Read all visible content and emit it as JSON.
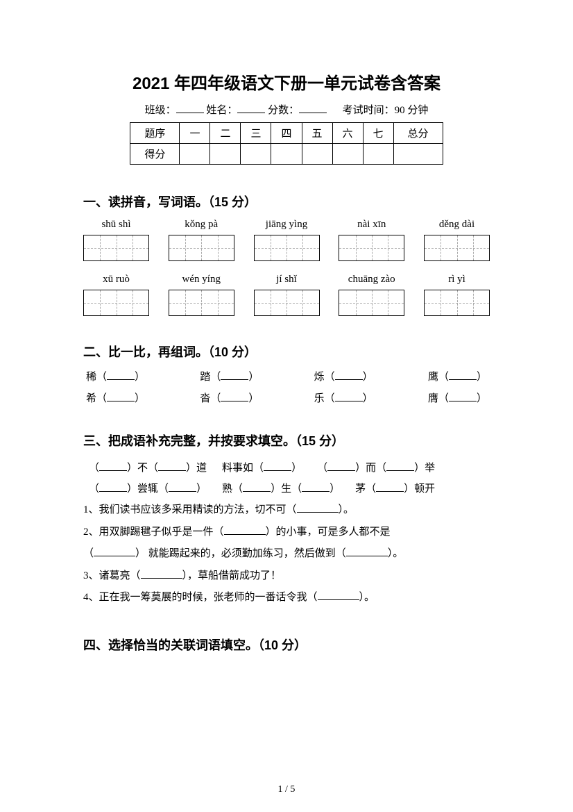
{
  "title": "2021 年四年级语文下册一单元试卷含答案",
  "header": {
    "class_label": "班级：",
    "name_label": "姓名：",
    "score_label": "分数：",
    "exam_time": "考试时间：90 分钟"
  },
  "score_table": {
    "row1": [
      "题序",
      "一",
      "二",
      "三",
      "四",
      "五",
      "六",
      "七",
      "总分"
    ],
    "row2_label": "得分"
  },
  "section1": {
    "heading": "一、读拼音，写词语。（15 分）",
    "pinyin_row1": [
      "shū shì",
      "kǒng pà",
      "jiāng yìng",
      "nài xīn",
      "děng dài"
    ],
    "pinyin_row2": [
      "xū ruò",
      "wén yíng",
      "jí shǐ",
      "chuāng zào",
      "rì yì"
    ]
  },
  "section2": {
    "heading": "二、比一比，再组词。（10 分）",
    "row1": [
      "稀",
      "踏",
      "烁",
      "鹰"
    ],
    "row2": [
      "希",
      "沓",
      "乐",
      "膺"
    ]
  },
  "section3": {
    "heading": "三、把成语补充完整，并按要求填空。（15 分）",
    "idioms_line1_parts": [
      "（",
      "）不（",
      "）道",
      "料事如（",
      "）",
      "（",
      "）而（",
      "）举"
    ],
    "idioms_line2_parts": [
      "（",
      "）尝辄（",
      "）",
      "熟（",
      "）生（",
      "）",
      "茅（",
      "）顿开"
    ],
    "q1": "1、我们读书应该多采用精读的方法，切不可（",
    "q1_end": "）。",
    "q2": "2、用双脚踢毽子似乎是一件（",
    "q2_mid": "）的小事，可是多人都不是",
    "q2b": "（",
    "q2b_mid": "） 就能踢起来的，必须勤加练习，然后做到（",
    "q2b_end": "）。",
    "q3": "3、诸葛亮（",
    "q3_end": "），草船借箭成功了！",
    "q4": "4、正在我一筹莫展的时候，张老师的一番话令我（",
    "q4_end": "）。"
  },
  "section4": {
    "heading": "四、选择恰当的关联词语填空。（10 分）"
  },
  "page_number": "1 / 5",
  "colors": {
    "text": "#000000",
    "background": "#ffffff",
    "dashed": "#aaaaaa"
  }
}
